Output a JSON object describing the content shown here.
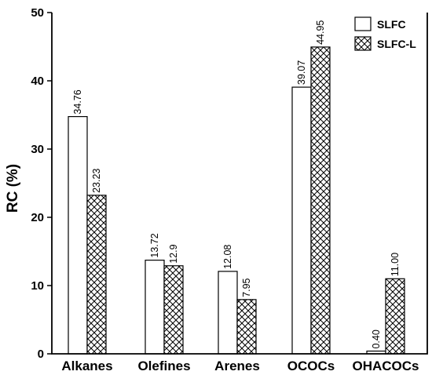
{
  "chart_data": {
    "type": "bar",
    "categories": [
      "Alkanes",
      "Olefines",
      "Arenes",
      "OCOCs",
      "OHACOCs"
    ],
    "series": [
      {
        "name": "SLFC",
        "values": [
          34.76,
          13.72,
          12.08,
          39.07,
          0.4
        ],
        "labels": [
          "34.76",
          "13.72",
          "12.08",
          "39.07",
          "0.40"
        ],
        "pattern": "solid-white"
      },
      {
        "name": "SLFC-L",
        "values": [
          23.23,
          12.9,
          7.95,
          44.95,
          11.0
        ],
        "labels": [
          "23.23",
          "12.9",
          "7.95",
          "44.95",
          "11.00"
        ],
        "pattern": "crosshatch"
      }
    ],
    "title": "",
    "xlabel": "",
    "ylabel": "RC (%)",
    "ylim": [
      0,
      50
    ],
    "yticks": [
      0,
      10,
      20,
      30,
      40,
      50
    ],
    "ytick_labels": [
      "0",
      "10",
      "20",
      "30",
      "40",
      "50"
    ],
    "grid": false,
    "legend_position": "top-right",
    "colors": {
      "bar_fill": "#ffffff",
      "bar_stroke": "#000000",
      "hatch": "#000000"
    }
  }
}
